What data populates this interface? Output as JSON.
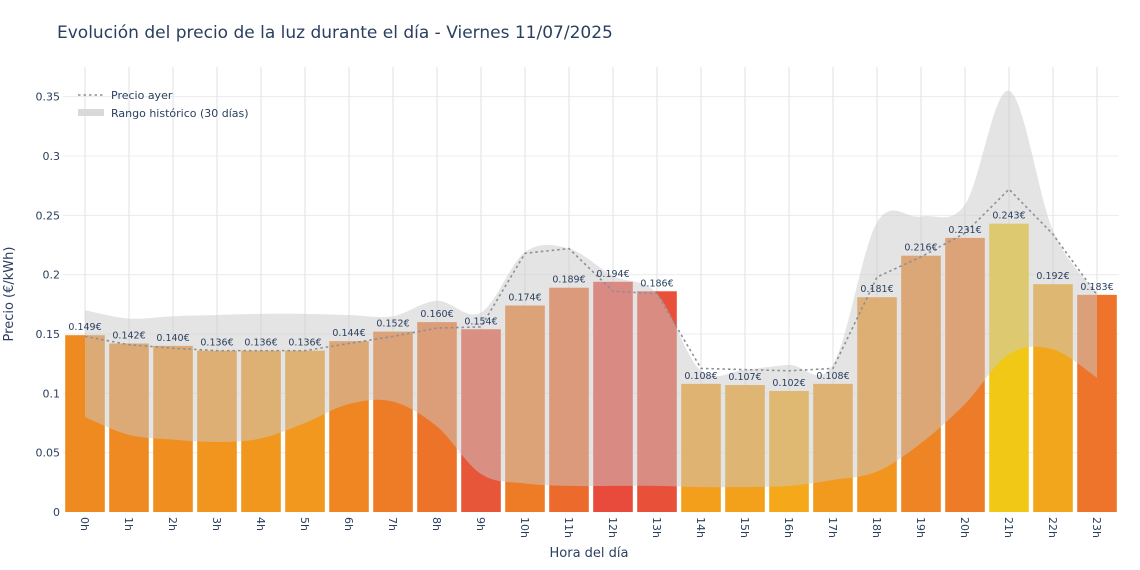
{
  "chart_data": {
    "type": "bar",
    "title": "Evolución del precio de la luz durante el día - Viernes 11/07/2025",
    "xlabel": "Hora del día",
    "ylabel": "Precio (€/kWh)",
    "ylim": [
      0,
      0.375
    ],
    "yticks": [
      0,
      0.05,
      0.1,
      0.15,
      0.2,
      0.25,
      0.3,
      0.35
    ],
    "ytick_labels": [
      "0",
      "0.05",
      "0.1",
      "0.15",
      "0.2",
      "0.25",
      "0.3",
      "0.35"
    ],
    "categories": [
      "0h",
      "1h",
      "2h",
      "3h",
      "4h",
      "5h",
      "6h",
      "7h",
      "8h",
      "9h",
      "10h",
      "11h",
      "12h",
      "13h",
      "14h",
      "15h",
      "16h",
      "17h",
      "18h",
      "19h",
      "20h",
      "21h",
      "22h",
      "23h"
    ],
    "values": [
      0.149,
      0.142,
      0.14,
      0.136,
      0.136,
      0.136,
      0.144,
      0.152,
      0.16,
      0.154,
      0.174,
      0.189,
      0.194,
      0.186,
      0.108,
      0.107,
      0.102,
      0.108,
      0.181,
      0.216,
      0.231,
      0.243,
      0.192,
      0.183
    ],
    "value_labels": [
      "0.149€",
      "0.142€",
      "0.140€",
      "0.136€",
      "0.136€",
      "0.136€",
      "0.144€",
      "0.152€",
      "0.160€",
      "0.154€",
      "0.174€",
      "0.189€",
      "0.194€",
      "0.186€",
      "0.108€",
      "0.107€",
      "0.102€",
      "0.108€",
      "0.181€",
      "0.216€",
      "0.231€",
      "0.243€",
      "0.192€",
      "0.183€"
    ],
    "bar_colors": [
      "#ee8a1f",
      "#ef8a22",
      "#f08f20",
      "#f1951e",
      "#f1971e",
      "#f2981e",
      "#ef8622",
      "#ee7b26",
      "#ed7329",
      "#e8563a",
      "#ee7b26",
      "#eb6a2c",
      "#e84a3c",
      "#e9503a",
      "#f49f1c",
      "#f3a01b",
      "#f4a81a",
      "#f29a1d",
      "#f1951e",
      "#ef8424",
      "#ee7b27",
      "#f1c816",
      "#f2a61b",
      "#ed742a"
    ],
    "series": [
      {
        "name": "Precio ayer",
        "style": "dotted-line",
        "color": "#8a8f98",
        "values": [
          0.148,
          0.141,
          0.138,
          0.136,
          0.136,
          0.136,
          0.142,
          0.148,
          0.155,
          0.156,
          0.218,
          0.222,
          0.186,
          0.184,
          0.121,
          0.12,
          0.119,
          0.121,
          0.198,
          0.215,
          0.235,
          0.272,
          0.234,
          0.183
        ]
      },
      {
        "name": "Rango histórico (30 días)",
        "style": "band",
        "color": "#d7d7d7",
        "upper": [
          0.17,
          0.163,
          0.165,
          0.166,
          0.167,
          0.167,
          0.166,
          0.165,
          0.178,
          0.168,
          0.219,
          0.222,
          0.199,
          0.184,
          0.119,
          0.12,
          0.124,
          0.124,
          0.244,
          0.249,
          0.259,
          0.355,
          0.237,
          0.184
        ],
        "lower": [
          0.08,
          0.065,
          0.061,
          0.059,
          0.062,
          0.075,
          0.091,
          0.093,
          0.072,
          0.032,
          0.024,
          0.022,
          0.022,
          0.022,
          0.021,
          0.021,
          0.022,
          0.027,
          0.034,
          0.058,
          0.091,
          0.133,
          0.137,
          0.113
        ]
      }
    ],
    "legend": {
      "position": "top-left",
      "entries": [
        "Precio ayer",
        "Rango histórico (30 días)"
      ]
    },
    "grid": true
  }
}
